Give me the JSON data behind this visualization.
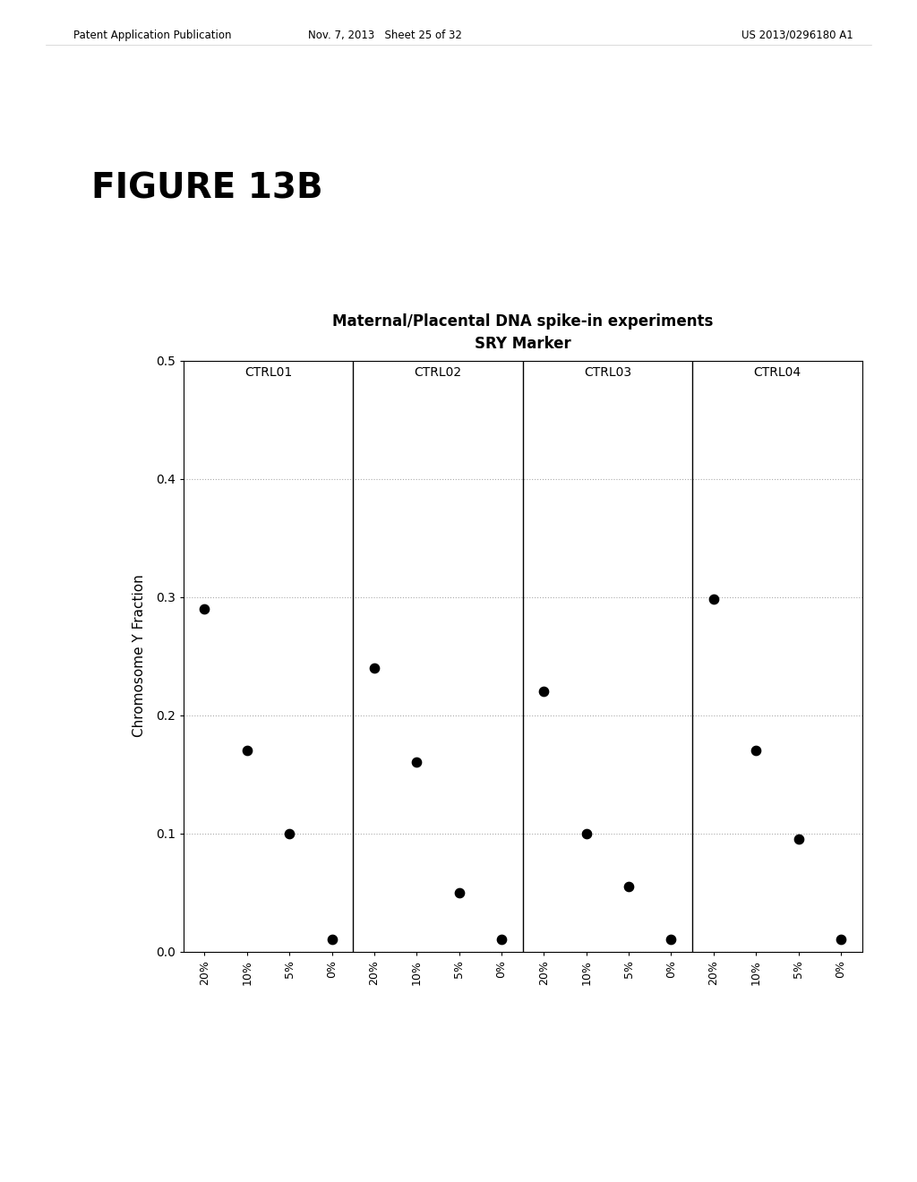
{
  "title_line1": "Maternal/Placental DNA spike-in experiments",
  "title_line2": "SRY Marker",
  "ylabel": "Chromosome Y Fraction",
  "groups": [
    "CTRL01",
    "CTRL02",
    "CTRL03",
    "CTRL04"
  ],
  "x_labels": [
    "20%",
    "10%",
    "5%",
    "0%"
  ],
  "data": {
    "CTRL01": [
      0.29,
      0.17,
      0.1,
      0.01
    ],
    "CTRL02": [
      0.24,
      0.16,
      0.05,
      0.01
    ],
    "CTRL03": [
      0.22,
      0.1,
      0.055,
      0.01
    ],
    "CTRL04": [
      0.298,
      0.17,
      0.095,
      0.01
    ]
  },
  "ylim": [
    0.0,
    0.5
  ],
  "yticks": [
    0.0,
    0.1,
    0.2,
    0.3,
    0.4,
    0.5
  ],
  "ytick_labels": [
    "0.0",
    "0.1",
    "0.2",
    "0.3",
    "0.4",
    "0.5"
  ],
  "background_color": "#ffffff",
  "dot_color": "#000000",
  "dot_size": 55,
  "header_left": "Patent Application Publication",
  "header_mid": "Nov. 7, 2013   Sheet 25 of 32",
  "header_right": "US 2013/0296180 A1",
  "figure_label": "FIGURE 13B",
  "panel_border_color": "#000000"
}
